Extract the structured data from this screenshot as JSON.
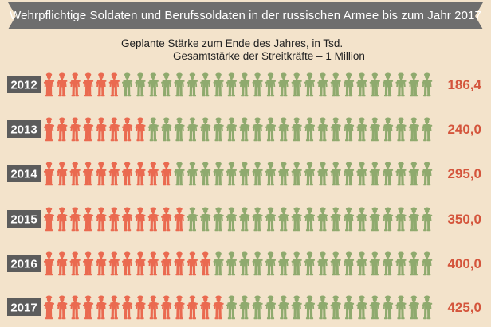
{
  "header": {
    "title": "Wehrpflichtige Soldaten und Berufssoldaten in der russischen Armee bis zum Jahr 2017",
    "subtitle": "Geplante Stärke zum Ende des Jahres, in Tsd.",
    "total_note": "Gesamtstärke der Streitkräfte – 1 Million"
  },
  "colors": {
    "background": "#f3e3cb",
    "professional": "#ea6a50",
    "conscript": "#8faa6e",
    "value_text": "#d4553c",
    "year_box": "#5c5c5c",
    "banner": "#6e6e6e"
  },
  "icons": {
    "unit": "soldier-icon"
  },
  "chart_data": {
    "type": "pictogram",
    "title": "Wehrpflichtige Soldaten und Berufssoldaten in der russischen Armee bis zum Jahr 2017",
    "subtitle": "Geplante Stärke zum Ende des Jahres, in Tsd.",
    "total": 1000,
    "categories": [
      "2012",
      "2013",
      "2014",
      "2015",
      "2016",
      "2017"
    ],
    "series": [
      {
        "values": [
          186.4,
          240.0,
          295.0,
          350.0,
          400.0,
          425.0
        ]
      }
    ],
    "value_labels": [
      "186,4",
      "240,0",
      "295,0",
      "350,0",
      "400,0",
      "425,0"
    ],
    "icons_per_row": 30,
    "icons_highlighted": [
      6,
      8,
      10,
      11,
      13,
      14
    ]
  }
}
